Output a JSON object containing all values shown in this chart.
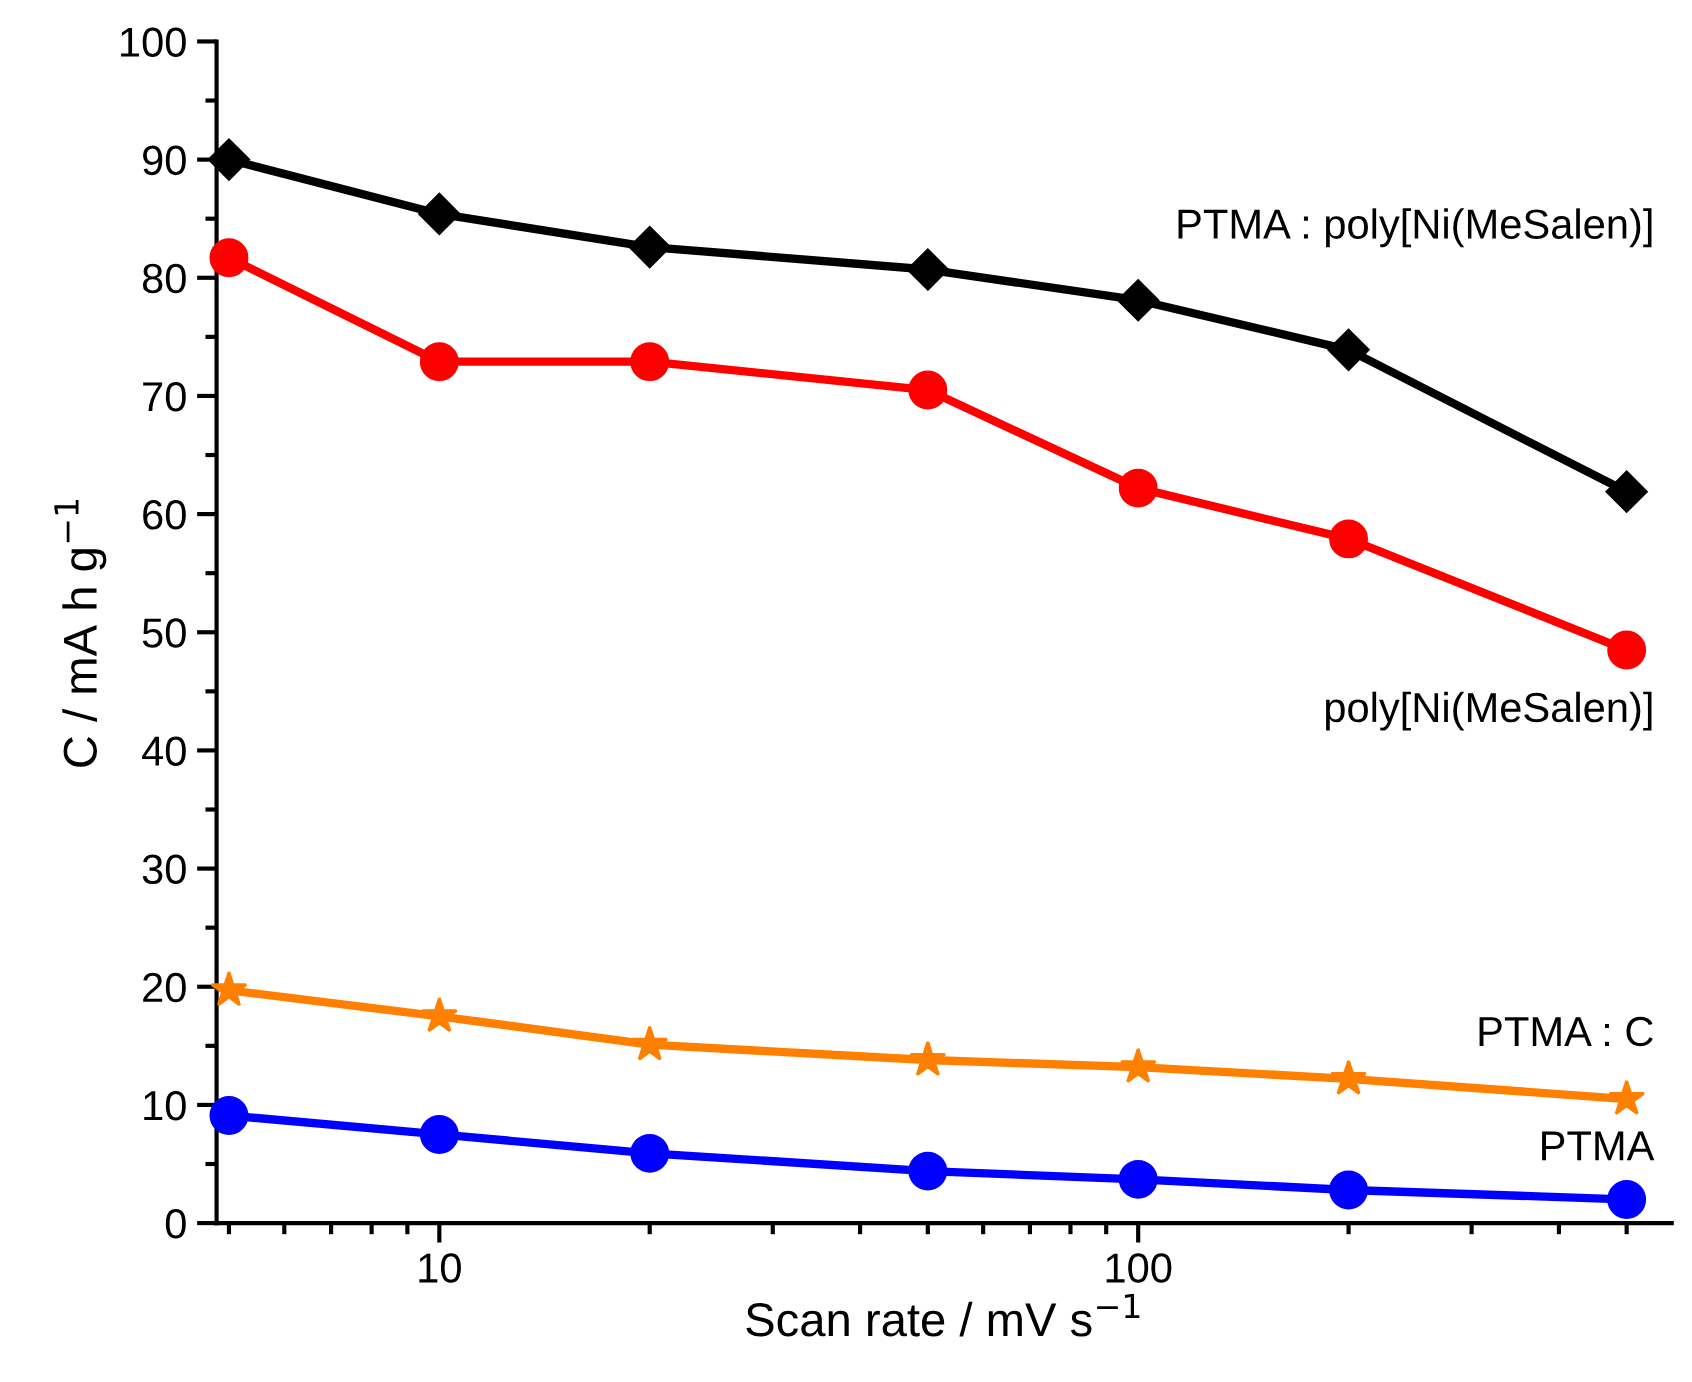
{
  "chart_data": {
    "type": "line",
    "xlabel": "Scan rate / mV s$^{−1}$",
    "ylabel": "C / mA h g$^{−1}$",
    "x": [
      5,
      10,
      20,
      50,
      100,
      200,
      500
    ],
    "log": "x",
    "xlim": [
      4.8,
      580
    ],
    "xticks": [
      10,
      100
    ],
    "ylim": [
      0,
      100
    ],
    "yticks": [
      0,
      10,
      20,
      30,
      40,
      50,
      60,
      70,
      80,
      90,
      100
    ],
    "grid": false,
    "legend": false,
    "line_style": "solid",
    "series": [
      {
        "name": "PTMA : poly[Ni(MeSalen)]",
        "color": "#000000",
        "marker": "diamond",
        "values": [
          90,
          85.4,
          82.6,
          80.7,
          78.1,
          73.9,
          61.9
        ]
      },
      {
        "name": "poly[Ni(MeSalen)]",
        "color": "#ff0000",
        "marker": "circle",
        "values": [
          81.7,
          72.9,
          72.9,
          70.5,
          62.2,
          57.9,
          48.5
        ]
      },
      {
        "name": "PTMA : C",
        "color": "#ff8000",
        "marker": "star",
        "values": [
          19.7,
          17.5,
          15.1,
          13.8,
          13.2,
          12.2,
          10.5
        ]
      },
      {
        "name": "PTMA",
        "color": "#0000ff",
        "marker": "circle",
        "values": [
          9.1,
          7.5,
          5.9,
          4.4,
          3.7,
          2.8,
          2.0
        ]
      }
    ]
  }
}
